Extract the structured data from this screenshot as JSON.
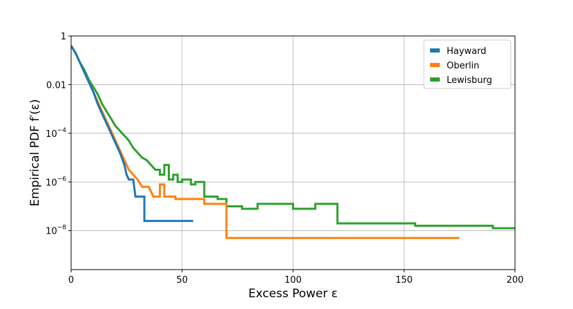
{
  "chart_data": {
    "type": "line",
    "xlabel": "Excess Power ε",
    "ylabel": "Empirical PDF f′(ε)",
    "xlim": [
      0,
      200
    ],
    "ylim_log10": [
      -9.6,
      0
    ],
    "y_scale": "log",
    "grid": true,
    "legend_location": "top-right",
    "xticks": [
      {
        "value": 0,
        "label": "0"
      },
      {
        "value": 50,
        "label": "50"
      },
      {
        "value": 100,
        "label": "100"
      },
      {
        "value": 150,
        "label": "150"
      },
      {
        "value": 200,
        "label": "200"
      }
    ],
    "yticks": [
      {
        "log10": 0,
        "label": "1",
        "exp": ""
      },
      {
        "log10": -2,
        "label": "0.01",
        "exp": ""
      },
      {
        "log10": -4,
        "label": "10",
        "exp": "−4"
      },
      {
        "log10": -6,
        "label": "10",
        "exp": "−6"
      },
      {
        "log10": -8,
        "label": "10",
        "exp": "−8"
      }
    ],
    "series": [
      {
        "name": "Hayward",
        "color": "#1f77b4",
        "points": [
          [
            0,
            -0.4
          ],
          [
            2,
            -0.7
          ],
          [
            4,
            -1.1
          ],
          [
            6,
            -1.5
          ],
          [
            8,
            -1.9
          ],
          [
            10,
            -2.3
          ],
          [
            12,
            -2.8
          ],
          [
            14,
            -3.2
          ],
          [
            16,
            -3.6
          ],
          [
            18,
            -4.0
          ],
          [
            20,
            -4.4
          ],
          [
            22,
            -4.8
          ],
          [
            24,
            -5.3
          ],
          [
            25,
            -5.7
          ],
          [
            26,
            -5.9
          ],
          [
            28,
            -5.9
          ],
          [
            29,
            -6.6
          ],
          [
            33,
            -6.6
          ],
          [
            33,
            -7.6
          ],
          [
            55,
            -7.6
          ]
        ]
      },
      {
        "name": "Oberlin",
        "color": "#ff7f0e",
        "points": [
          [
            0,
            -0.4
          ],
          [
            2,
            -0.7
          ],
          [
            4,
            -1.1
          ],
          [
            6,
            -1.5
          ],
          [
            8,
            -1.9
          ],
          [
            10,
            -2.3
          ],
          [
            12,
            -2.7
          ],
          [
            14,
            -3.1
          ],
          [
            16,
            -3.5
          ],
          [
            18,
            -3.9
          ],
          [
            20,
            -4.3
          ],
          [
            22,
            -4.7
          ],
          [
            24,
            -5.1
          ],
          [
            26,
            -5.5
          ],
          [
            28,
            -5.7
          ],
          [
            30,
            -5.9
          ],
          [
            32,
            -6.2
          ],
          [
            35,
            -6.2
          ],
          [
            37,
            -6.6
          ],
          [
            40,
            -6.6
          ],
          [
            40,
            -6.1
          ],
          [
            42,
            -6.1
          ],
          [
            42,
            -6.6
          ],
          [
            47,
            -6.6
          ],
          [
            47,
            -6.7
          ],
          [
            60,
            -6.7
          ],
          [
            60,
            -6.9
          ],
          [
            70,
            -6.9
          ],
          [
            70,
            -8.3
          ],
          [
            175,
            -8.3
          ]
        ]
      },
      {
        "name": "Lewisburg",
        "color": "#2ca02c",
        "points": [
          [
            0,
            -0.4
          ],
          [
            2,
            -0.7
          ],
          [
            4,
            -1.1
          ],
          [
            6,
            -1.4
          ],
          [
            8,
            -1.8
          ],
          [
            10,
            -2.1
          ],
          [
            12,
            -2.4
          ],
          [
            14,
            -2.8
          ],
          [
            16,
            -3.1
          ],
          [
            18,
            -3.4
          ],
          [
            20,
            -3.7
          ],
          [
            22,
            -3.9
          ],
          [
            24,
            -4.1
          ],
          [
            26,
            -4.3
          ],
          [
            28,
            -4.6
          ],
          [
            30,
            -4.8
          ],
          [
            32,
            -5.0
          ],
          [
            34,
            -5.1
          ],
          [
            36,
            -5.3
          ],
          [
            38,
            -5.5
          ],
          [
            40,
            -5.5
          ],
          [
            40,
            -5.7
          ],
          [
            42,
            -5.7
          ],
          [
            42,
            -5.3
          ],
          [
            44,
            -5.3
          ],
          [
            44,
            -5.9
          ],
          [
            46,
            -5.9
          ],
          [
            46,
            -5.7
          ],
          [
            48,
            -5.7
          ],
          [
            48,
            -6.0
          ],
          [
            50,
            -6.0
          ],
          [
            50,
            -5.9
          ],
          [
            54,
            -5.9
          ],
          [
            54,
            -6.1
          ],
          [
            56,
            -6.1
          ],
          [
            56,
            -6.0
          ],
          [
            60,
            -6.0
          ],
          [
            60,
            -6.6
          ],
          [
            66,
            -6.6
          ],
          [
            66,
            -6.7
          ],
          [
            70,
            -6.7
          ],
          [
            70,
            -7.0
          ],
          [
            77,
            -7.0
          ],
          [
            77,
            -7.1
          ],
          [
            84,
            -7.1
          ],
          [
            84,
            -6.9
          ],
          [
            100,
            -6.9
          ],
          [
            100,
            -7.1
          ],
          [
            110,
            -7.1
          ],
          [
            110,
            -6.9
          ],
          [
            120,
            -6.9
          ],
          [
            120,
            -7.7
          ],
          [
            155,
            -7.7
          ],
          [
            155,
            -7.8
          ],
          [
            190,
            -7.8
          ],
          [
            190,
            -7.9
          ],
          [
            200,
            -7.9
          ]
        ]
      }
    ]
  }
}
